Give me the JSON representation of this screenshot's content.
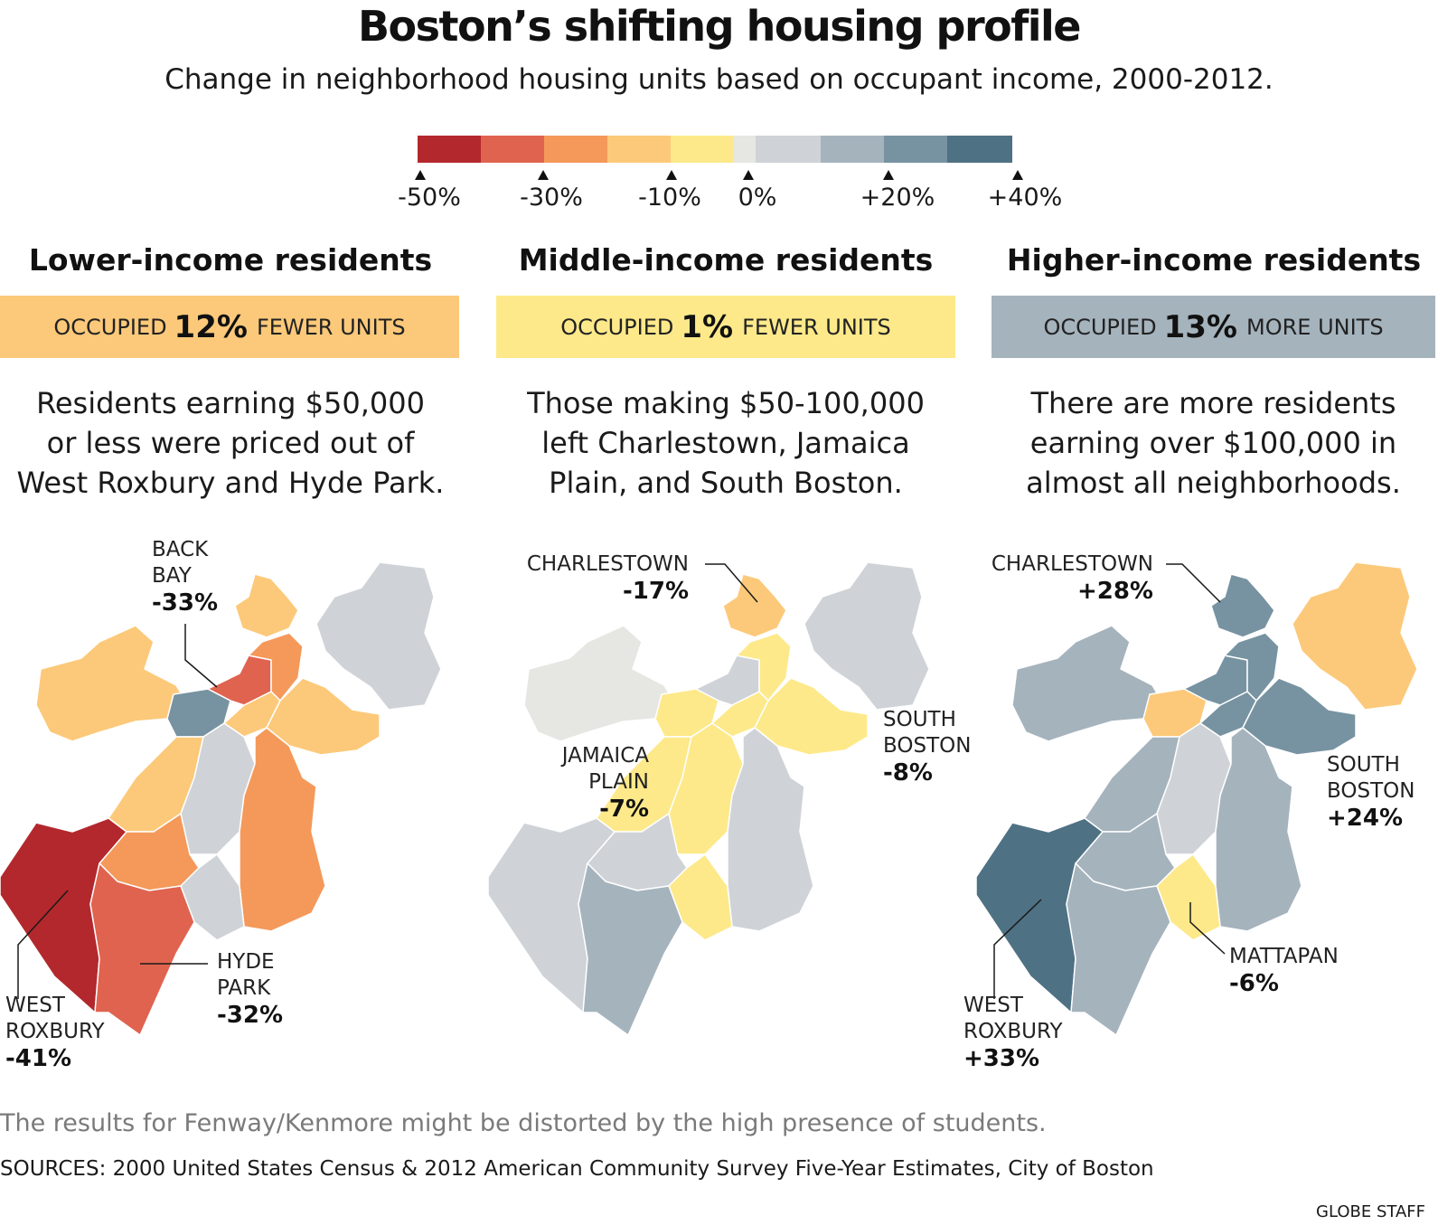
{
  "title": "Boston’s shifting housing profile",
  "subtitle": "Change in neighborhood housing units based on occupant income, 2000-2012.",
  "legend": {
    "colors": [
      "#b3282d",
      "#e0634f",
      "#f4995a",
      "#fcc97a",
      "#fde98a",
      "#e6e6e3",
      "#cfd3d7",
      "#a5b3bd",
      "#7793a1",
      "#4f7184"
    ],
    "ticks": [
      "-50%",
      "-30%",
      "-10%",
      "0%",
      "+20%",
      "+40%"
    ]
  },
  "columns": [
    {
      "heading": "Lower-income residents",
      "band_prefix": "OCCUPIED",
      "band_value": "12%",
      "band_suffix": "FEWER UNITS",
      "band_color": "#fcc97a",
      "blurb_lines": [
        "Residents earning $50,000",
        "or less were priced out of",
        "West Roxbury and Hyde Park."
      ],
      "callouts": [
        {
          "name": "BACK BAY",
          "lines": [
            "BACK",
            "BAY"
          ],
          "value": "-33%"
        },
        {
          "name": "HYDE PARK",
          "lines": [
            "HYDE",
            "PARK"
          ],
          "value": "-32%"
        },
        {
          "name": "WEST ROXBURY",
          "lines": [
            "WEST",
            "ROXBURY"
          ],
          "value": "-41%"
        }
      ]
    },
    {
      "heading": "Middle-income residents",
      "band_prefix": "OCCUPIED",
      "band_value": "1%",
      "band_suffix": "FEWER UNITS",
      "band_color": "#fde98a",
      "blurb_lines": [
        "Those making $50-100,000",
        "left Charlestown, Jamaica",
        "Plain, and South Boston."
      ],
      "callouts": [
        {
          "name": "CHARLESTOWN",
          "lines": [
            "CHARLESTOWN"
          ],
          "value": "-17%"
        },
        {
          "name": "JAMAICA PLAIN",
          "lines": [
            "JAMAICA",
            "PLAIN"
          ],
          "value": "-7%"
        },
        {
          "name": "SOUTH BOSTON",
          "lines": [
            "SOUTH",
            "BOSTON"
          ],
          "value": "-8%"
        }
      ]
    },
    {
      "heading": "Higher-income residents",
      "band_prefix": "OCCUPIED",
      "band_value": "13%",
      "band_suffix": "MORE UNITS",
      "band_color": "#a5b3bd",
      "blurb_lines": [
        "There are more residents",
        "earning over $100,000 in",
        "almost all neighborhoods."
      ],
      "callouts": [
        {
          "name": "CHARLESTOWN",
          "lines": [
            "CHARLESTOWN"
          ],
          "value": "+28%"
        },
        {
          "name": "SOUTH BOSTON",
          "lines": [
            "SOUTH",
            "BOSTON"
          ],
          "value": "+24%"
        },
        {
          "name": "MATTAPAN",
          "lines": [
            "MATTAPAN"
          ],
          "value": "-6%"
        },
        {
          "name": "WEST ROXBURY",
          "lines": [
            "WEST",
            "ROXBURY"
          ],
          "value": "+33%"
        }
      ]
    }
  ],
  "note": "The results for Fenway/Kenmore might be distorted by the high presence of students.",
  "sources": "SOURCES: 2000 United States Census & 2012 American Community Survey Five-Year Estimates, City of Boston",
  "credit": "GLOBE STAFF"
}
